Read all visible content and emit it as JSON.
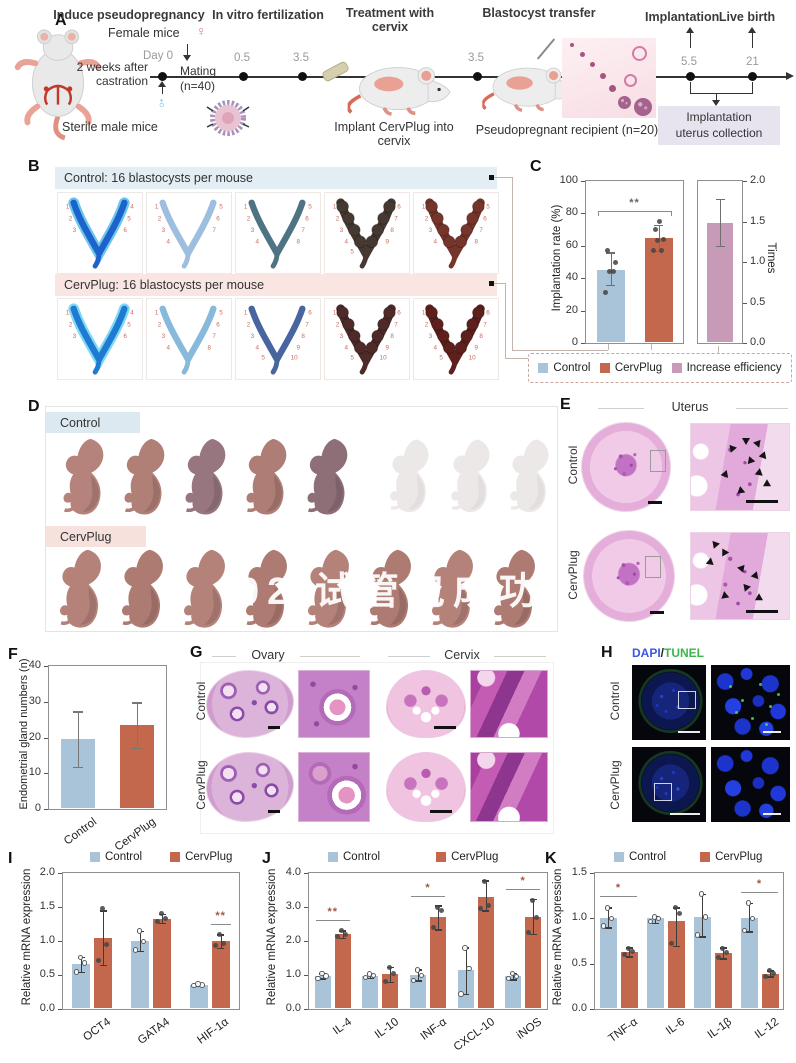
{
  "colors": {
    "control": "#a9c3d9",
    "cervplug": "#c3674d",
    "efficiency": "#c79ab8",
    "band_blue": "#e3edf4",
    "band_pink": "#f9e6e3",
    "chip_blue": "#dde9f1",
    "chip_pink": "#f6e1dd",
    "collection_box": "#e7e4ef"
  },
  "panel_a": {
    "label": "A",
    "stages": [
      "Induce pseudopregnancy",
      "In vitro fertilization",
      "Treatment with cervix",
      "Blastocyst transfer",
      "Implantation",
      "Live birth"
    ],
    "timeline": [
      "Day 0",
      "0.5",
      "3.5",
      "3.5",
      "5.5",
      "21"
    ],
    "female_mice": "Female mice",
    "female_symbol": "♀",
    "male_symbol": "♂",
    "castration_1": "2 weeks after",
    "castration_2": "castration",
    "mating": "Mating",
    "mating_n": "(n=40)",
    "sterile": "Sterile male mice",
    "implant": "Implant CervPlug into cervix",
    "recipient": "Pseudopregnant recipient (n=20)",
    "collection_1": "Implantation",
    "collection_2": "uterus collection"
  },
  "panel_b": {
    "label": "B",
    "control_header": "Control: 16 blastocysts per mouse",
    "cervplug_header": "CervPlug: 16 blastocysts per mouse",
    "tiles_row1": [
      {
        "main": "#1d63cc",
        "hi": "#6ec6ea",
        "bead": false,
        "n": 6
      },
      {
        "main": "#9dbede",
        "hi": "",
        "bead": false,
        "n": 7
      },
      {
        "main": "#4e7383",
        "hi": "",
        "bead": false,
        "n": 8
      },
      {
        "main": "#453931",
        "hi": "",
        "bead": true,
        "n": 9
      },
      {
        "main": "#76352a",
        "hi": "",
        "bead": true,
        "n": 8
      }
    ],
    "tiles_row2": [
      {
        "main": "#1f7ad2",
        "hi": "#7fd8f2",
        "bead": false,
        "n": 6
      },
      {
        "main": "#86b9da",
        "hi": "",
        "bead": false,
        "n": 8
      },
      {
        "main": "#49659f",
        "hi": "",
        "bead": false,
        "n": 10
      },
      {
        "main": "#4e2a28",
        "hi": "",
        "bead": true,
        "n": 11
      },
      {
        "main": "#5e201c",
        "hi": "",
        "bead": true,
        "n": 11
      }
    ]
  },
  "panel_d": {
    "label": "D",
    "control": "Control",
    "cervplug": "CervPlug",
    "watermark": "02 试管包成功"
  },
  "panel_e": {
    "label": "E",
    "title": "Uterus",
    "rows": [
      "Control",
      "CervPlug"
    ]
  },
  "panel_g": {
    "label": "G",
    "col_titles": [
      "Ovary",
      "Cervix"
    ],
    "rows": [
      "Control",
      "CervPlug"
    ]
  },
  "panel_h": {
    "label": "H",
    "title_dapi": "DAPI",
    "title_slash": "/",
    "title_tunel": "TUNEL",
    "rows": [
      "Control",
      "CervPlug"
    ]
  },
  "chart_data": [
    {
      "id": "C",
      "label": "C",
      "type": "bar",
      "ylabel": "Implantation rate (%)",
      "ymin": 0,
      "ymax": 100,
      "yticks": [
        "0",
        "20",
        "40",
        "60",
        "80",
        "100"
      ],
      "groups": [
        {
          "category": "Control",
          "value": 45,
          "error": [
            36,
            56
          ],
          "dots": [
            31,
            44,
            44,
            50,
            57
          ]
        },
        {
          "category": "CervPlug",
          "value": 65,
          "error": [
            57,
            73
          ],
          "dots": [
            57,
            57,
            63,
            64,
            70,
            75
          ]
        }
      ],
      "sig": "**",
      "right_axis": {
        "ylabel": "Times",
        "ymin": 0,
        "ymax": 2,
        "yticks": [
          "0.0",
          "0.5",
          "1.0",
          "1.5",
          "2.0"
        ],
        "group": {
          "category": "Increase efficiency",
          "value": 1.48,
          "error": [
            1.2,
            1.78
          ]
        }
      },
      "legend": [
        "Control",
        "CervPlug",
        "Increase efficiency"
      ]
    },
    {
      "id": "F",
      "label": "F",
      "type": "bar",
      "ylabel": "Endometrial gland numbers (n)",
      "ymin": 0,
      "ymax": 40,
      "yticks": [
        "0",
        "10",
        "20",
        "30",
        "40"
      ],
      "categories": [
        "Control",
        "CervPlug"
      ],
      "values": [
        19.5,
        23.5
      ],
      "errors": [
        [
          11.8,
          27.3
        ],
        [
          17.2,
          29.8
        ]
      ]
    },
    {
      "id": "I",
      "label": "I",
      "type": "bar",
      "ylabel": "Relative mRNA expression",
      "ymin": 0,
      "ymax": 2,
      "yticks": [
        "0.0",
        "0.5",
        "1.0",
        "1.5",
        "2.0"
      ],
      "legend": [
        "Control",
        "CervPlug"
      ],
      "categories": [
        "OCT4",
        "GATA4",
        "HIF-1α"
      ],
      "series": [
        {
          "name": "Control",
          "values": [
            0.66,
            1.0,
            0.36
          ],
          "errors": [
            [
              0.55,
              0.77
            ],
            [
              0.86,
              1.15
            ],
            [
              0.34,
              0.38
            ]
          ],
          "dots": [
            [
              0.55,
              0.68,
              0.76
            ],
            [
              0.87,
              1.0,
              1.15
            ],
            [
              0.35,
              0.36,
              0.37
            ]
          ]
        },
        {
          "name": "CervPlug",
          "values": [
            1.05,
            1.33,
            1.0
          ],
          "errors": [
            [
              0.65,
              1.45
            ],
            [
              1.27,
              1.4
            ],
            [
              0.9,
              1.1
            ]
          ],
          "dots": [
            [
              0.72,
              0.95,
              1.48
            ],
            [
              1.29,
              1.33,
              1.4
            ],
            [
              0.93,
              0.97,
              1.09
            ]
          ]
        }
      ],
      "sig": {
        "HIF-1α": "**"
      }
    },
    {
      "id": "J",
      "label": "J",
      "type": "bar",
      "ylabel": "Relative mRNA expression",
      "ymin": 0,
      "ymax": 4,
      "yticks": [
        "0.0",
        "1.0",
        "2.0",
        "3.0",
        "4.0"
      ],
      "legend": [
        "Control",
        "CervPlug"
      ],
      "categories": [
        "IL-4",
        "IL-10",
        "INF-α",
        "CXCL-10",
        "iNOS"
      ],
      "series": [
        {
          "name": "Control",
          "values": [
            0.97,
            0.98,
            1.0,
            1.16,
            0.97
          ],
          "errors": [
            [
              0.9,
              1.05
            ],
            [
              0.92,
              1.04
            ],
            [
              0.84,
              1.17
            ],
            [
              0.45,
              1.82
            ],
            [
              0.87,
              1.07
            ]
          ],
          "dots": [
            [
              0.9,
              0.98,
              1.05
            ],
            [
              0.93,
              0.99,
              1.03
            ],
            [
              0.85,
              1.0,
              1.15
            ],
            [
              0.45,
              1.2,
              1.8
            ],
            [
              0.9,
              0.97,
              1.05
            ]
          ]
        },
        {
          "name": "CervPlug",
          "values": [
            2.2,
            1.03,
            2.72,
            3.3,
            2.72
          ],
          "errors": [
            [
              2.1,
              2.32
            ],
            [
              0.8,
              1.25
            ],
            [
              2.35,
              3.05
            ],
            [
              2.9,
              3.78
            ],
            [
              2.22,
              3.25
            ]
          ],
          "dots": [
            [
              2.12,
              2.2,
              2.3
            ],
            [
              0.82,
              1.05,
              1.22
            ],
            [
              2.4,
              2.9,
              3.0
            ],
            [
              2.95,
              3.05,
              3.75
            ],
            [
              2.25,
              2.7,
              3.2
            ]
          ]
        }
      ],
      "sig": {
        "IL-4": "**",
        "INF-α": "*",
        "iNOS": "*"
      }
    },
    {
      "id": "K",
      "label": "K",
      "type": "bar",
      "ylabel": "Relative mRNA expression",
      "ymin": 0,
      "ymax": 1.5,
      "yticks": [
        "0.0",
        "0.5",
        "1.0",
        "1.5"
      ],
      "legend": [
        "Control",
        "CervPlug"
      ],
      "categories": [
        "TNF-α",
        "IL-6",
        "IL-1β",
        "IL-12"
      ],
      "series": [
        {
          "name": "Control",
          "values": [
            1.0,
            1.0,
            1.01,
            1.0
          ],
          "errors": [
            [
              0.9,
              1.12
            ],
            [
              0.95,
              1.03
            ],
            [
              0.8,
              1.27
            ],
            [
              0.86,
              1.17
            ]
          ],
          "dots": [
            [
              0.92,
              1.0,
              1.12
            ],
            [
              0.97,
              1.0,
              1.02
            ],
            [
              0.82,
              1.02,
              1.27
            ],
            [
              0.87,
              1.0,
              1.17
            ]
          ]
        },
        {
          "name": "CervPlug",
          "values": [
            0.63,
            0.97,
            0.62,
            0.39
          ],
          "errors": [
            [
              0.58,
              0.68
            ],
            [
              0.7,
              1.12
            ],
            [
              0.56,
              0.68
            ],
            [
              0.36,
              0.43
            ]
          ],
          "dots": [
            [
              0.6,
              0.63,
              0.67
            ],
            [
              0.72,
              1.05,
              1.12
            ],
            [
              0.57,
              0.62,
              0.67
            ],
            [
              0.36,
              0.39,
              0.43
            ]
          ]
        }
      ],
      "sig": {
        "TNF-α": "*",
        "IL-12": "*"
      }
    }
  ]
}
